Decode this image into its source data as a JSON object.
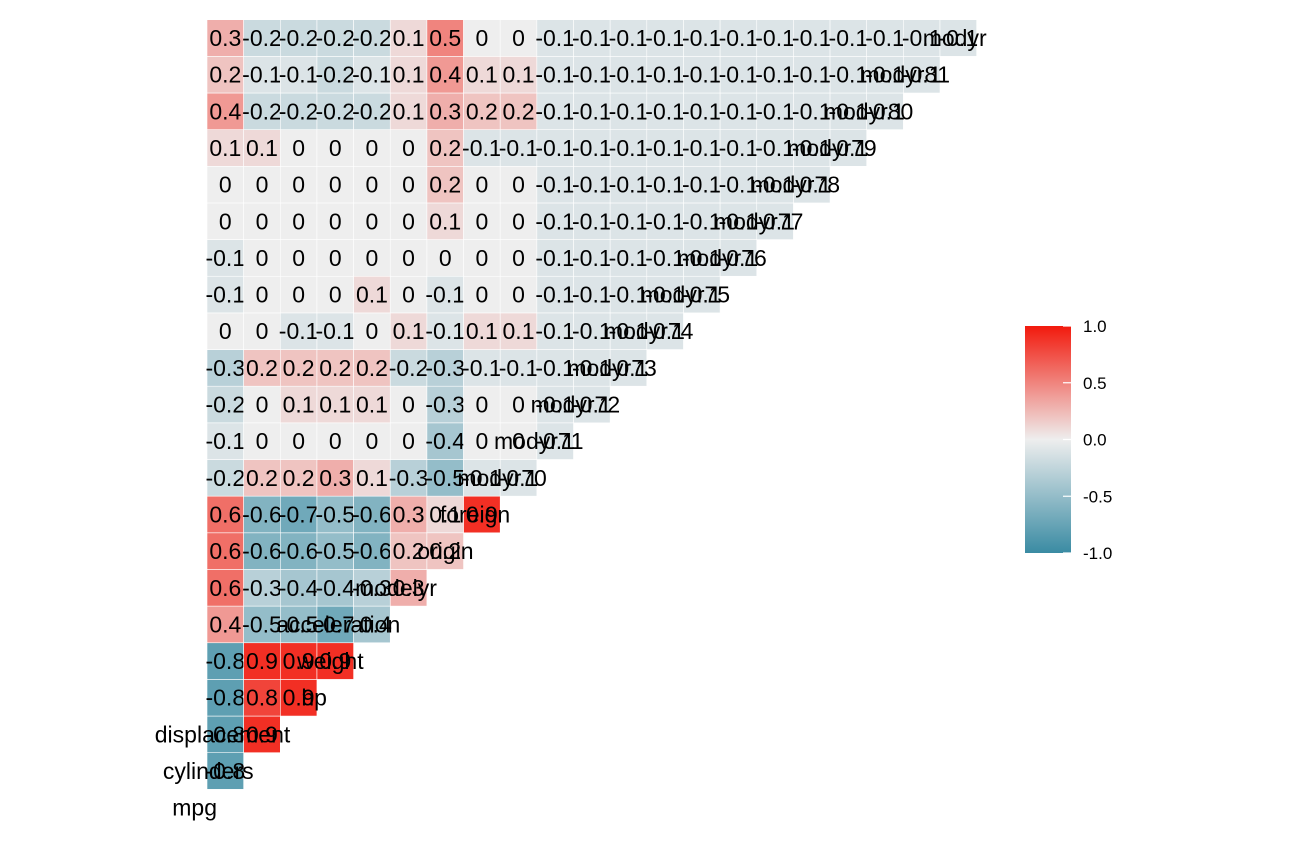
{
  "chart_data": {
    "type": "heatmap",
    "subtype": "lower-triangular correlation matrix",
    "variables": [
      "mpg",
      "cylinders",
      "displacement",
      "hp",
      "weight",
      "acceleration",
      "modelyr",
      "origin",
      "foreign",
      "modyr70",
      "modyr71",
      "modyr72",
      "modyr73",
      "modyr74",
      "modyr75",
      "modyr76",
      "modyr77",
      "modyr78",
      "modyr79",
      "modyr80",
      "modyr81",
      "modyr"
    ],
    "rows": [
      {
        "name": "mpg",
        "values": []
      },
      {
        "name": "cylinders",
        "values": [
          "-0.8"
        ]
      },
      {
        "name": "displacement",
        "values": [
          "-0.8",
          "0.9"
        ]
      },
      {
        "name": "hp",
        "values": [
          "-0.8",
          "0.8",
          "0.9"
        ]
      },
      {
        "name": "weight",
        "values": [
          "-0.8",
          "0.9",
          "0.9",
          "0.9"
        ]
      },
      {
        "name": "acceleration",
        "values": [
          "0.4",
          "-0.5",
          "-0.5",
          "-0.7",
          "-0.4"
        ]
      },
      {
        "name": "modelyr",
        "values": [
          "0.6",
          "-0.3",
          "-0.4",
          "-0.4",
          "-0.3",
          "0.3"
        ]
      },
      {
        "name": "origin",
        "values": [
          "0.6",
          "-0.6",
          "-0.6",
          "-0.5",
          "-0.6",
          "0.2",
          "0.2"
        ]
      },
      {
        "name": "foreign",
        "values": [
          "0.6",
          "-0.6",
          "-0.7",
          "-0.5",
          "-0.6",
          "0.3",
          "0.1",
          "0.9"
        ]
      },
      {
        "name": "modyr70",
        "values": [
          "-0.2",
          "0.2",
          "0.2",
          "0.3",
          "0.1",
          "-0.3",
          "-0.5",
          "-0.1",
          "-0.1"
        ]
      },
      {
        "name": "modyr71",
        "values": [
          "-0.1",
          "0",
          "0",
          "0",
          "0",
          "0",
          "-0.4",
          "0",
          "0",
          "-0.1"
        ]
      },
      {
        "name": "modyr72",
        "values": [
          "-0.2",
          "0",
          "0.1",
          "0.1",
          "0.1",
          "0",
          "-0.3",
          "0",
          "0",
          "-0.1",
          "-0.1"
        ]
      },
      {
        "name": "modyr73",
        "values": [
          "-0.3",
          "0.2",
          "0.2",
          "0.2",
          "0.2",
          "-0.2",
          "-0.3",
          "-0.1",
          "-0.1",
          "-0.1",
          "-0.1",
          "-0.1"
        ]
      },
      {
        "name": "modyr74",
        "values": [
          "0",
          "0",
          "-0.1",
          "-0.1",
          "0",
          "0.1",
          "-0.1",
          "0.1",
          "0.1",
          "-0.1",
          "-0.1",
          "-0.1",
          "-0.1"
        ]
      },
      {
        "name": "modyr75",
        "values": [
          "-0.1",
          "0",
          "0",
          "0",
          "0.1",
          "0",
          "-0.1",
          "0",
          "0",
          "-0.1",
          "-0.1",
          "-0.1",
          "-0.1",
          "-0.1"
        ]
      },
      {
        "name": "modyr76",
        "values": [
          "-0.1",
          "0",
          "0",
          "0",
          "0",
          "0",
          "0",
          "0",
          "0",
          "-0.1",
          "-0.1",
          "-0.1",
          "-0.1",
          "-0.1",
          "-0.1"
        ]
      },
      {
        "name": "modyr77",
        "values": [
          "0",
          "0",
          "0",
          "0",
          "0",
          "0",
          "0.1",
          "0",
          "0",
          "-0.1",
          "-0.1",
          "-0.1",
          "-0.1",
          "-0.1",
          "-0.1",
          "-0.1"
        ]
      },
      {
        "name": "modyr78",
        "values": [
          "0",
          "0",
          "0",
          "0",
          "0",
          "0",
          "0.2",
          "0",
          "0",
          "-0.1",
          "-0.1",
          "-0.1",
          "-0.1",
          "-0.1",
          "-0.1",
          "-0.1",
          "-0.1"
        ]
      },
      {
        "name": "modyr79",
        "values": [
          "0.1",
          "0.1",
          "0",
          "0",
          "0",
          "0",
          "0.2",
          "-0.1",
          "-0.1",
          "-0.1",
          "-0.1",
          "-0.1",
          "-0.1",
          "-0.1",
          "-0.1",
          "-0.1",
          "-0.1",
          "-0.1"
        ]
      },
      {
        "name": "modyr80",
        "values": [
          "0.4",
          "-0.2",
          "-0.2",
          "-0.2",
          "-0.2",
          "0.1",
          "0.3",
          "0.2",
          "0.2",
          "-0.1",
          "-0.1",
          "-0.1",
          "-0.1",
          "-0.1",
          "-0.1",
          "-0.1",
          "-0.1",
          "-0.1",
          "-0.1"
        ]
      },
      {
        "name": "modyr81",
        "values": [
          "0.2",
          "-0.1",
          "-0.1",
          "-0.2",
          "-0.1",
          "0.1",
          "0.4",
          "0.1",
          "0.1",
          "-0.1",
          "-0.1",
          "-0.1",
          "-0.1",
          "-0.1",
          "-0.1",
          "-0.1",
          "-0.1",
          "-0.1",
          "-0.1",
          "-0.1"
        ]
      },
      {
        "name": "modyr",
        "values": [
          "0.3",
          "-0.2",
          "-0.2",
          "-0.2",
          "-0.2",
          "0.1",
          "0.5",
          "0",
          "0",
          "-0.1",
          "-0.1",
          "-0.1",
          "-0.1",
          "-0.1",
          "-0.1",
          "-0.1",
          "-0.1",
          "-0.1",
          "-0.1",
          "-0.1",
          "-0.1"
        ]
      }
    ],
    "value_range": [
      -1,
      1
    ],
    "legend": {
      "position": "right",
      "ticks": [
        "1.0",
        "0.5",
        "0.0",
        "-0.5",
        "-1.0"
      ],
      "colors": {
        "low": "#3A8BA3",
        "mid": "#EEEEEE",
        "high": "#F21A0D"
      }
    }
  }
}
